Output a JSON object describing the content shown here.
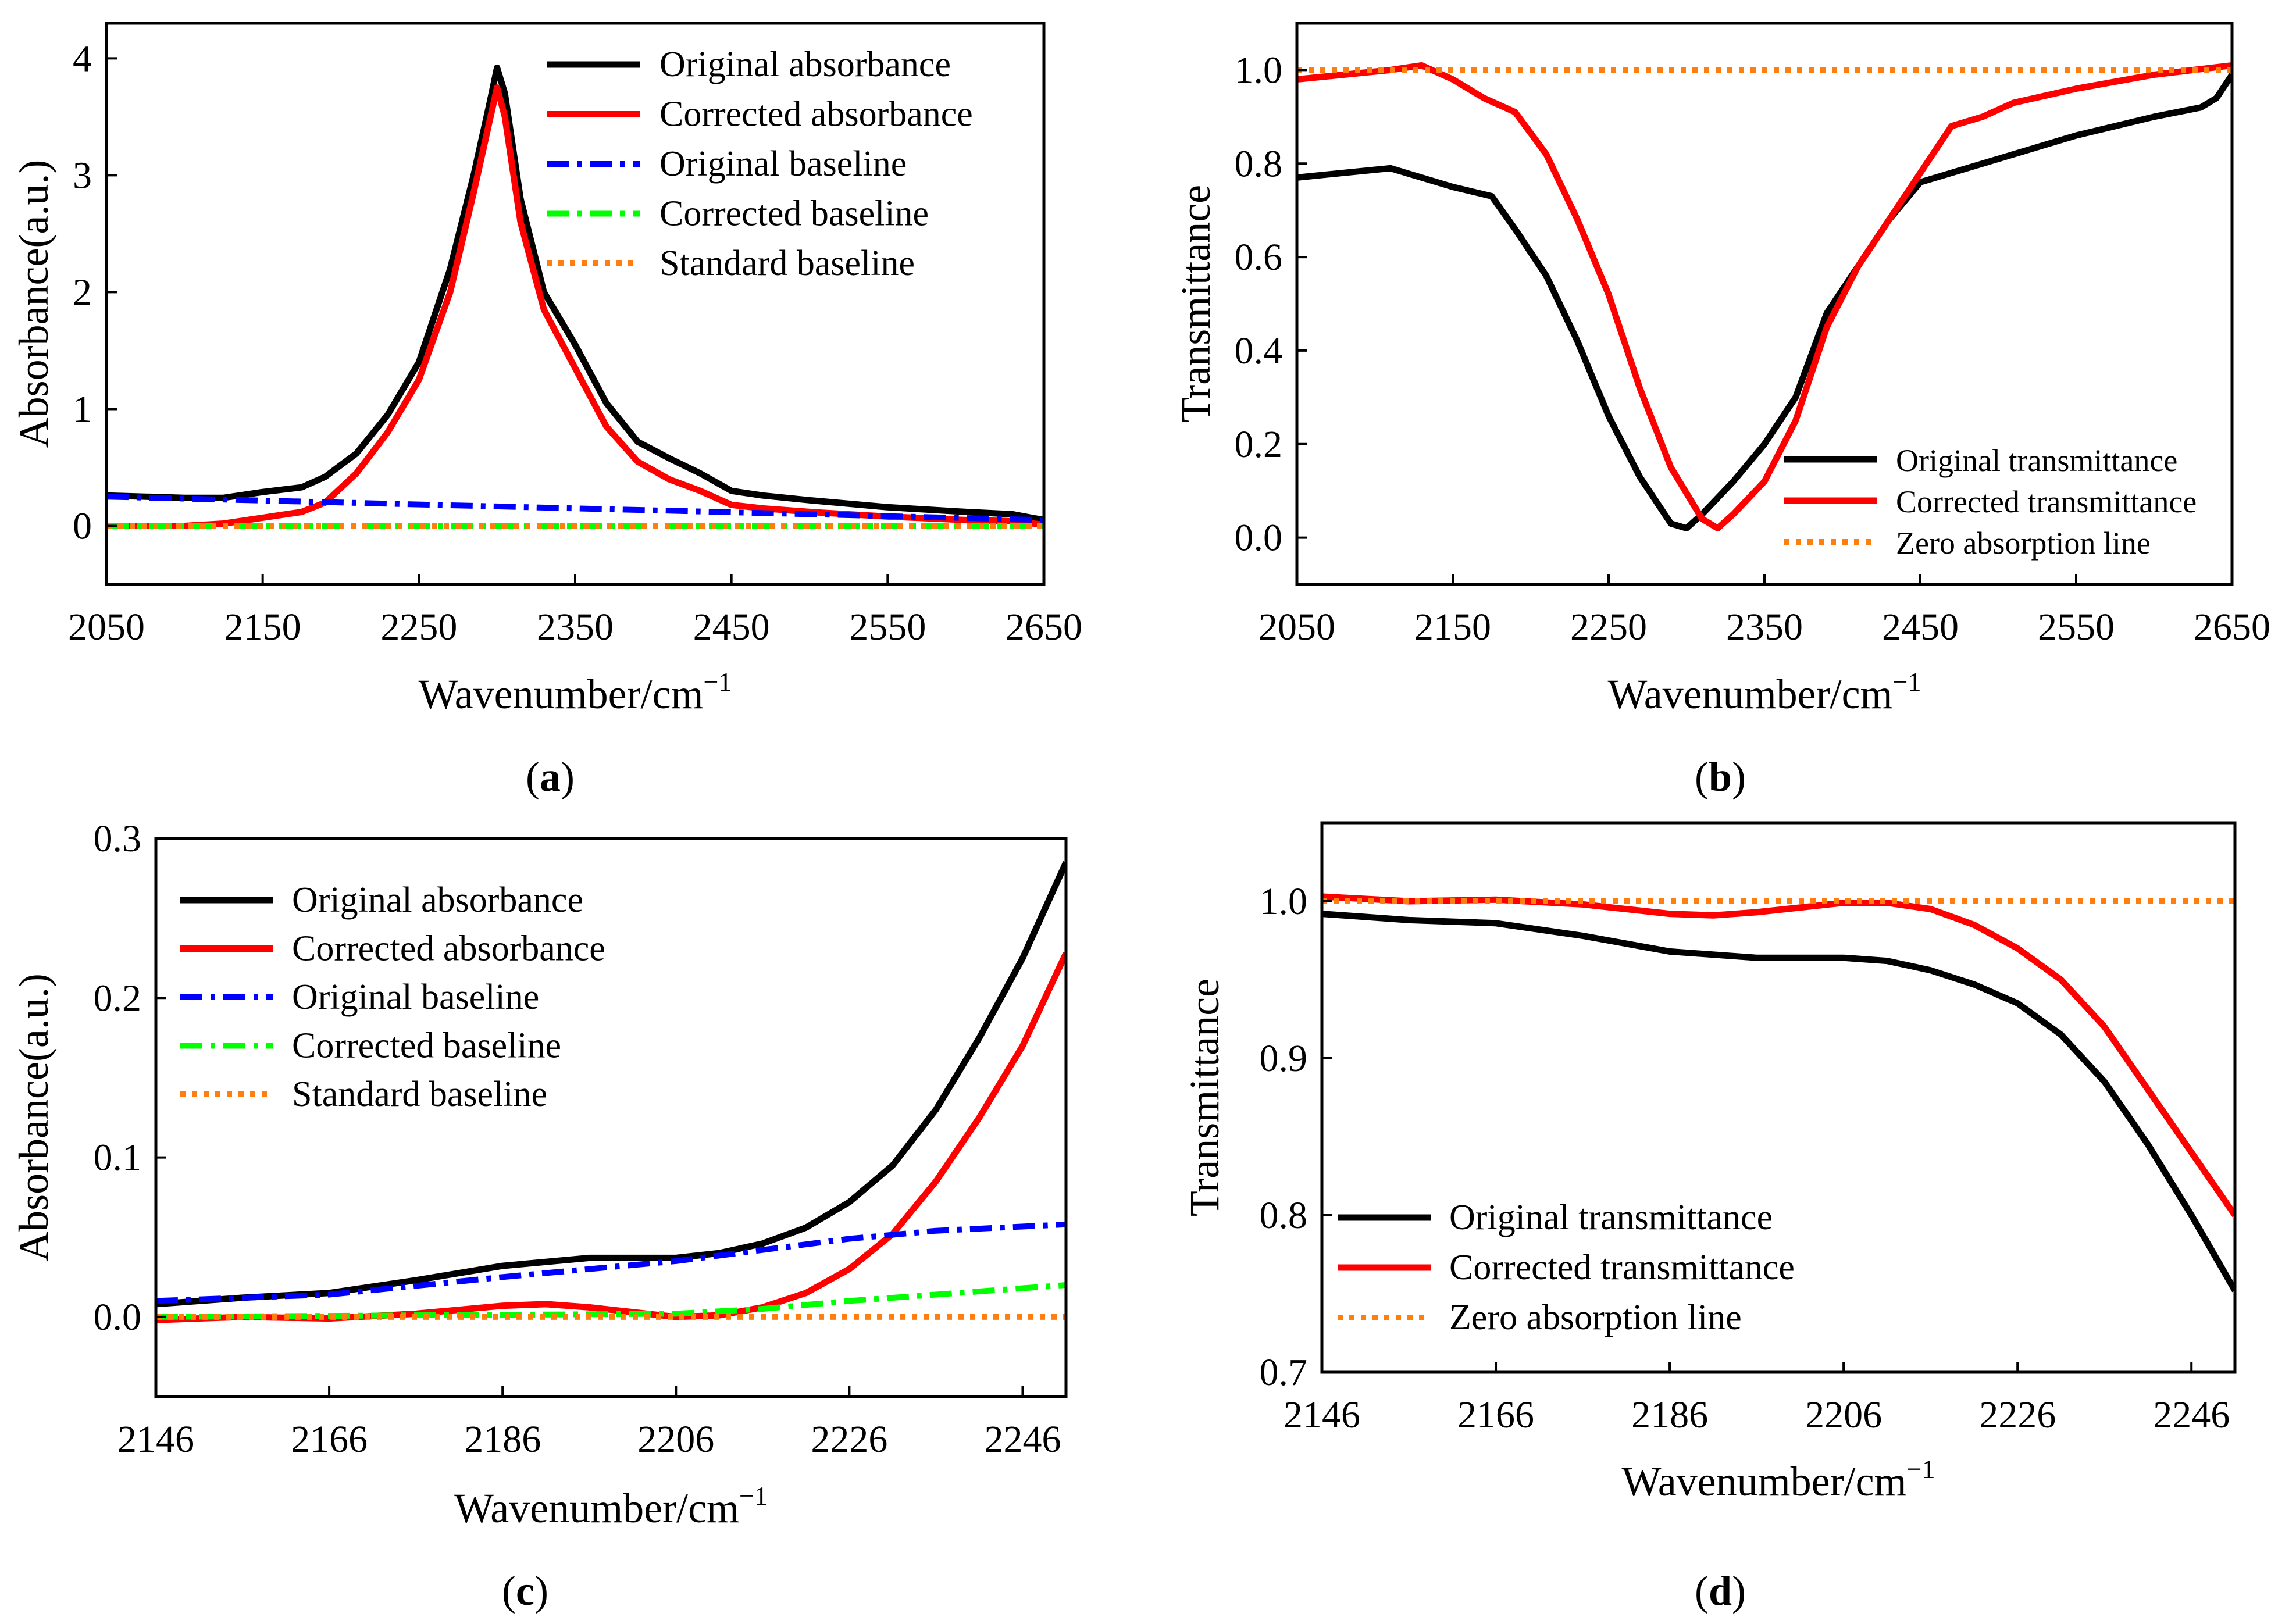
{
  "chart_data": [
    {
      "panel": "a",
      "type": "line",
      "caption": {
        "open": "(",
        "letter": "a",
        "close": ")"
      },
      "xlabel": "Wavenumber/cm",
      "xlabel_sup": "−1",
      "ylabel": "Absorbance(a.u.)",
      "xlim": [
        2050,
        2650
      ],
      "ylim": [
        -0.5,
        4.3
      ],
      "xticks": [
        2050,
        2150,
        2250,
        2350,
        2450,
        2550,
        2650
      ],
      "xtick_labels": [
        "2050",
        "2150",
        "2250",
        "2350",
        "2450",
        "2550",
        "2650"
      ],
      "yticks": [
        0,
        1,
        2,
        3,
        4
      ],
      "ytick_labels": [
        "0",
        "1",
        "2",
        "3",
        "4"
      ],
      "legend_position": "top-right",
      "series": [
        {
          "name": "Original absorbance",
          "color": "#000000",
          "style": "solid",
          "x": [
            2050,
            2100,
            2125,
            2150,
            2175,
            2190,
            2210,
            2230,
            2250,
            2270,
            2285,
            2295,
            2300,
            2305,
            2315,
            2330,
            2350,
            2370,
            2390,
            2410,
            2430,
            2450,
            2470,
            2500,
            2550,
            2600,
            2630,
            2650
          ],
          "y": [
            0.26,
            0.24,
            0.24,
            0.29,
            0.33,
            0.42,
            0.62,
            0.95,
            1.4,
            2.2,
            3.0,
            3.6,
            3.92,
            3.7,
            2.8,
            2.0,
            1.55,
            1.05,
            0.72,
            0.58,
            0.45,
            0.3,
            0.26,
            0.22,
            0.16,
            0.12,
            0.1,
            0.05
          ]
        },
        {
          "name": "Corrected absorbance",
          "color": "#ff0000",
          "style": "solid",
          "x": [
            2050,
            2100,
            2125,
            2150,
            2175,
            2190,
            2210,
            2230,
            2250,
            2270,
            2285,
            2295,
            2300,
            2305,
            2315,
            2330,
            2350,
            2370,
            2390,
            2410,
            2430,
            2450,
            2470,
            2500,
            2550,
            2600,
            2630,
            2650
          ],
          "y": [
            0.0,
            0.0,
            0.02,
            0.07,
            0.12,
            0.2,
            0.45,
            0.8,
            1.25,
            2.0,
            2.85,
            3.45,
            3.75,
            3.5,
            2.6,
            1.85,
            1.35,
            0.85,
            0.55,
            0.4,
            0.3,
            0.18,
            0.15,
            0.12,
            0.08,
            0.05,
            0.04,
            0.01
          ]
        },
        {
          "name": "Original baseline",
          "color": "#0000ff",
          "style": "dashdot",
          "x": [
            2050,
            2650
          ],
          "y": [
            0.25,
            0.05
          ]
        },
        {
          "name": "Corrected baseline",
          "color": "#00ff00",
          "style": "dashdot",
          "x": [
            2050,
            2650
          ],
          "y": [
            0.0,
            0.0
          ]
        },
        {
          "name": "Standard baseline",
          "color": "#ff7f0e",
          "style": "dotted",
          "x": [
            2050,
            2650
          ],
          "y": [
            0.0,
            0.0
          ]
        }
      ]
    },
    {
      "panel": "b",
      "type": "line",
      "caption": {
        "open": "(",
        "letter": "b",
        "close": ")"
      },
      "xlabel": "Wavenumber/cm",
      "xlabel_sup": "−1",
      "ylabel": "Transmittance",
      "xlim": [
        2050,
        2650
      ],
      "ylim": [
        -0.1,
        1.1
      ],
      "xticks": [
        2050,
        2150,
        2250,
        2350,
        2450,
        2550,
        2650
      ],
      "xtick_labels": [
        "2050",
        "2150",
        "2250",
        "2350",
        "2450",
        "2550",
        "2650"
      ],
      "yticks": [
        0.0,
        0.2,
        0.4,
        0.6,
        0.8,
        1.0
      ],
      "ytick_labels": [
        "0.0",
        "0.2",
        "0.4",
        "0.6",
        "0.8",
        "1.0"
      ],
      "legend_position": "bottom-right",
      "series": [
        {
          "name": "Original transmittance",
          "color": "#000000",
          "style": "solid",
          "x": [
            2050,
            2080,
            2110,
            2130,
            2150,
            2175,
            2190,
            2210,
            2230,
            2250,
            2270,
            2290,
            2300,
            2310,
            2330,
            2350,
            2370,
            2390,
            2410,
            2430,
            2450,
            2470,
            2490,
            2510,
            2550,
            2600,
            2630,
            2640,
            2650
          ],
          "y": [
            0.77,
            0.78,
            0.79,
            0.77,
            0.75,
            0.73,
            0.66,
            0.56,
            0.42,
            0.26,
            0.13,
            0.03,
            0.02,
            0.05,
            0.12,
            0.2,
            0.3,
            0.48,
            0.58,
            0.68,
            0.76,
            0.78,
            0.8,
            0.82,
            0.86,
            0.9,
            0.92,
            0.94,
            0.99
          ]
        },
        {
          "name": "Corrected transmittance",
          "color": "#ff0000",
          "style": "solid",
          "x": [
            2050,
            2080,
            2110,
            2130,
            2150,
            2170,
            2190,
            2210,
            2230,
            2250,
            2270,
            2290,
            2310,
            2320,
            2330,
            2350,
            2370,
            2390,
            2410,
            2430,
            2450,
            2470,
            2490,
            2510,
            2550,
            2600,
            2650
          ],
          "y": [
            0.98,
            0.99,
            1.0,
            1.01,
            0.98,
            0.94,
            0.91,
            0.82,
            0.68,
            0.52,
            0.32,
            0.15,
            0.04,
            0.02,
            0.05,
            0.12,
            0.25,
            0.45,
            0.58,
            0.68,
            0.78,
            0.88,
            0.9,
            0.93,
            0.96,
            0.99,
            1.01
          ]
        },
        {
          "name": "Zero absorption line",
          "color": "#ff7f0e",
          "style": "dotted",
          "x": [
            2050,
            2650
          ],
          "y": [
            1.0,
            1.0
          ]
        }
      ]
    },
    {
      "panel": "c",
      "type": "line",
      "caption": {
        "open": "(",
        "letter": "c",
        "close": ")"
      },
      "xlabel": "Wavenumber/cm",
      "xlabel_sup": "−1",
      "ylabel": "Absorbance(a.u.)",
      "xlim": [
        2146,
        2251
      ],
      "ylim": [
        -0.05,
        0.3
      ],
      "xticks": [
        2146,
        2166,
        2186,
        2206,
        2226,
        2246
      ],
      "xtick_labels": [
        "2146",
        "2166",
        "2186",
        "2206",
        "2226",
        "2246"
      ],
      "yticks": [
        0.0,
        0.1,
        0.2,
        0.3
      ],
      "ytick_labels": [
        "0.0",
        "0.1",
        "0.2",
        "0.3"
      ],
      "legend_position": "top-left",
      "series": [
        {
          "name": "Original absorbance",
          "color": "#000000",
          "style": "solid",
          "x": [
            2146,
            2156,
            2166,
            2176,
            2186,
            2196,
            2206,
            2211,
            2216,
            2221,
            2226,
            2231,
            2236,
            2241,
            2246,
            2251
          ],
          "y": [
            0.008,
            0.012,
            0.015,
            0.023,
            0.032,
            0.037,
            0.037,
            0.04,
            0.046,
            0.056,
            0.072,
            0.095,
            0.13,
            0.175,
            0.225,
            0.285
          ]
        },
        {
          "name": "Corrected absorbance",
          "color": "#ff0000",
          "style": "solid",
          "x": [
            2146,
            2156,
            2166,
            2176,
            2186,
            2191,
            2196,
            2206,
            2211,
            2216,
            2221,
            2226,
            2231,
            2236,
            2241,
            2246,
            2251
          ],
          "y": [
            -0.002,
            0.0,
            -0.001,
            0.002,
            0.007,
            0.008,
            0.006,
            0.0,
            0.001,
            0.006,
            0.015,
            0.03,
            0.052,
            0.085,
            0.125,
            0.17,
            0.228
          ]
        },
        {
          "name": "Original baseline",
          "color": "#0000ff",
          "style": "dashdot",
          "x": [
            2146,
            2166,
            2186,
            2206,
            2216,
            2226,
            2236,
            2251
          ],
          "y": [
            0.01,
            0.014,
            0.025,
            0.035,
            0.042,
            0.049,
            0.054,
            0.058
          ]
        },
        {
          "name": "Corrected baseline",
          "color": "#00ff00",
          "style": "dashdot",
          "x": [
            2146,
            2206,
            2216,
            2226,
            2236,
            2251
          ],
          "y": [
            0.0,
            0.002,
            0.005,
            0.01,
            0.014,
            0.02
          ]
        },
        {
          "name": "Standard baseline",
          "color": "#ff7f0e",
          "style": "dotted",
          "x": [
            2146,
            2251
          ],
          "y": [
            0.0,
            0.0
          ]
        }
      ]
    },
    {
      "panel": "d",
      "type": "line",
      "caption": {
        "open": "(",
        "letter": "d",
        "close": ")"
      },
      "xlabel": "Wavenumber/cm",
      "xlabel_sup": "−1",
      "ylabel": "Transmittance",
      "xlim": [
        2146,
        2251
      ],
      "ylim": [
        0.7,
        1.05
      ],
      "xticks": [
        2146,
        2166,
        2186,
        2206,
        2226,
        2246
      ],
      "xtick_labels": [
        "2146",
        "2166",
        "2186",
        "2206",
        "2226",
        "2246"
      ],
      "yticks": [
        0.7,
        0.8,
        0.9,
        1.0
      ],
      "ytick_labels": [
        "0.7",
        "0.8",
        "0.9",
        "1.0"
      ],
      "legend_position": "bottom-left",
      "series": [
        {
          "name": "Original transmittance",
          "color": "#000000",
          "style": "solid",
          "x": [
            2146,
            2156,
            2166,
            2176,
            2186,
            2196,
            2206,
            2211,
            2216,
            2221,
            2226,
            2231,
            2236,
            2241,
            2246,
            2251
          ],
          "y": [
            0.992,
            0.988,
            0.986,
            0.978,
            0.968,
            0.964,
            0.964,
            0.962,
            0.956,
            0.947,
            0.935,
            0.915,
            0.885,
            0.845,
            0.8,
            0.752
          ]
        },
        {
          "name": "Corrected transmittance",
          "color": "#ff0000",
          "style": "solid",
          "x": [
            2146,
            2156,
            2166,
            2176,
            2186,
            2191,
            2196,
            2206,
            2211,
            2216,
            2221,
            2226,
            2231,
            2236,
            2241,
            2246,
            2251
          ],
          "y": [
            1.003,
            1.0,
            1.001,
            0.998,
            0.992,
            0.991,
            0.993,
            0.999,
            0.999,
            0.995,
            0.985,
            0.97,
            0.95,
            0.92,
            0.88,
            0.84,
            0.8
          ]
        },
        {
          "name": "Zero absorption line",
          "color": "#ff7f0e",
          "style": "dotted",
          "x": [
            2146,
            2251
          ],
          "y": [
            1.0,
            1.0
          ]
        }
      ]
    }
  ]
}
